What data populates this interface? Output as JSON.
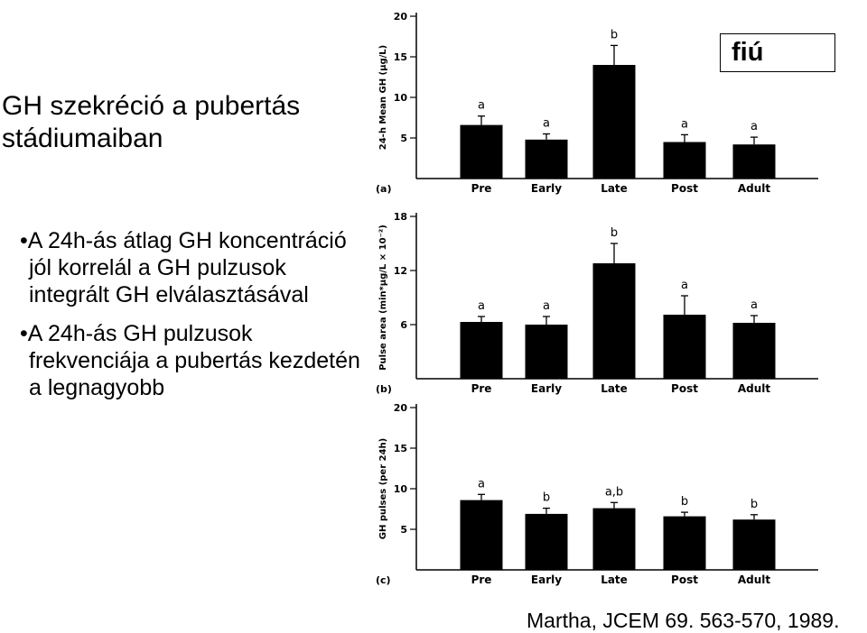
{
  "title": "GH szekréció a pubertás stádiumaiban",
  "bullets": [
    "A 24h-ás átlag GH koncentráció jól korrelál a GH pulzusok integrált GH elválasztásával",
    "A 24h-ás GH pulzusok frekvenciája a pubertás kezdetén a legnagyobb"
  ],
  "badge": "fiú",
  "citation": "Martha, JCEM 69. 563-570, 1989.",
  "colors": {
    "bar": "#000000",
    "badge_border": "#000000",
    "background": "#ffffff"
  },
  "chart_data": [
    {
      "type": "bar",
      "panel": "(a)",
      "ylabel": "24-h Mean GH (µg/L)",
      "categories": [
        "Pre",
        "Early",
        "Late",
        "Post",
        "Adult"
      ],
      "values": [
        6.6,
        4.8,
        14.0,
        4.5,
        4.2
      ],
      "errors": [
        1.1,
        0.7,
        2.4,
        0.9,
        0.9
      ],
      "labels": [
        "a",
        "a",
        "b",
        "a",
        "a"
      ],
      "yticks": [
        5,
        10,
        15,
        20
      ],
      "ylim": [
        0,
        20
      ]
    },
    {
      "type": "bar",
      "panel": "(b)",
      "ylabel": "Pulse area (min*µg/L × 10⁻²)",
      "categories": [
        "Pre",
        "Early",
        "Late",
        "Post",
        "Adult"
      ],
      "values": [
        6.3,
        6.0,
        12.8,
        7.1,
        6.2
      ],
      "errors": [
        0.6,
        0.9,
        2.2,
        2.1,
        0.8
      ],
      "labels": [
        "a",
        "a",
        "b",
        "a",
        "a"
      ],
      "yticks": [
        6,
        12,
        18
      ],
      "ylim": [
        0,
        18
      ]
    },
    {
      "type": "bar",
      "panel": "(c)",
      "ylabel": "GH pulses (per 24h)",
      "categories": [
        "Pre",
        "Early",
        "Late",
        "Post",
        "Adult"
      ],
      "values": [
        8.6,
        6.9,
        7.6,
        6.6,
        6.2
      ],
      "errors": [
        0.7,
        0.7,
        0.7,
        0.5,
        0.6
      ],
      "labels": [
        "a",
        "b",
        "a,b",
        "b",
        "b"
      ],
      "yticks": [
        5,
        10,
        15,
        20
      ],
      "ylim": [
        0,
        20
      ]
    }
  ]
}
